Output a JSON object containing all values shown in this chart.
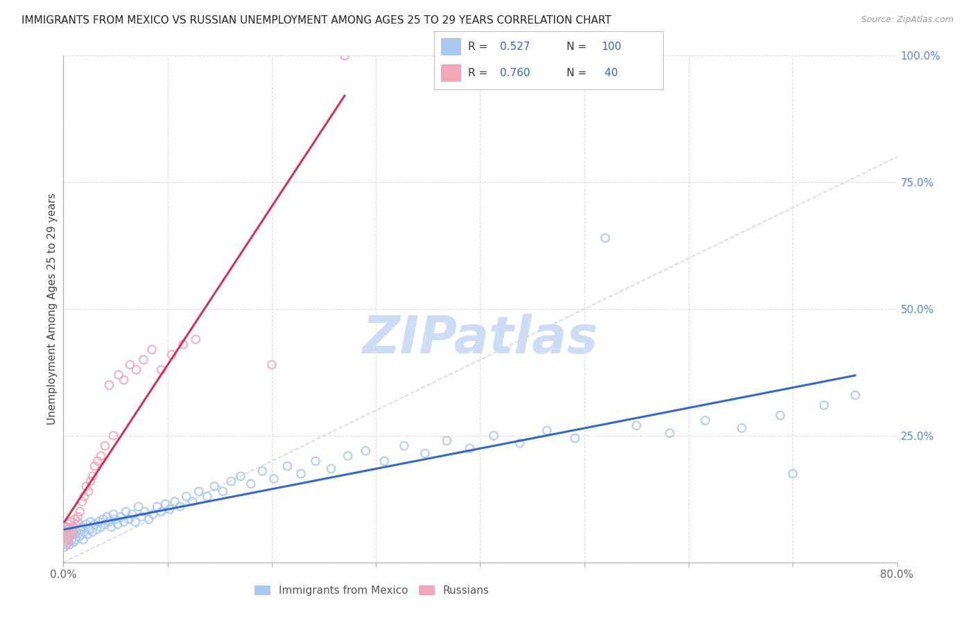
{
  "title": "IMMIGRANTS FROM MEXICO VS RUSSIAN UNEMPLOYMENT AMONG AGES 25 TO 29 YEARS CORRELATION CHART",
  "source": "Source: ZipAtlas.com",
  "ylabel": "Unemployment Among Ages 25 to 29 years",
  "xlim": [
    0.0,
    0.8
  ],
  "ylim": [
    0.0,
    1.0
  ],
  "blue_color": "#a8c8f0",
  "pink_color": "#f0a8b8",
  "blue_line_color": "#3366cc",
  "pink_line_color": "#cc3355",
  "diag_line_color": "#cccccc",
  "R_blue": 0.527,
  "N_blue": 100,
  "R_pink": 0.76,
  "N_pink": 40,
  "blue_x": [
    0.001,
    0.001,
    0.002,
    0.002,
    0.003,
    0.003,
    0.003,
    0.004,
    0.004,
    0.005,
    0.005,
    0.005,
    0.006,
    0.006,
    0.007,
    0.007,
    0.008,
    0.008,
    0.009,
    0.01,
    0.01,
    0.011,
    0.012,
    0.013,
    0.014,
    0.015,
    0.016,
    0.017,
    0.018,
    0.019,
    0.02,
    0.022,
    0.023,
    0.025,
    0.026,
    0.028,
    0.03,
    0.032,
    0.034,
    0.036,
    0.038,
    0.04,
    0.042,
    0.044,
    0.046,
    0.048,
    0.05,
    0.052,
    0.055,
    0.058,
    0.06,
    0.063,
    0.066,
    0.069,
    0.072,
    0.075,
    0.078,
    0.082,
    0.086,
    0.09,
    0.094,
    0.098,
    0.102,
    0.107,
    0.112,
    0.118,
    0.124,
    0.13,
    0.138,
    0.145,
    0.153,
    0.161,
    0.17,
    0.18,
    0.191,
    0.202,
    0.215,
    0.228,
    0.242,
    0.257,
    0.273,
    0.29,
    0.308,
    0.327,
    0.347,
    0.368,
    0.39,
    0.413,
    0.438,
    0.464,
    0.491,
    0.52,
    0.55,
    0.582,
    0.616,
    0.651,
    0.688,
    0.7,
    0.73,
    0.76
  ],
  "blue_y": [
    0.05,
    0.03,
    0.06,
    0.04,
    0.055,
    0.035,
    0.07,
    0.045,
    0.065,
    0.05,
    0.04,
    0.075,
    0.055,
    0.035,
    0.06,
    0.08,
    0.045,
    0.065,
    0.055,
    0.04,
    0.07,
    0.055,
    0.045,
    0.06,
    0.08,
    0.05,
    0.065,
    0.055,
    0.07,
    0.045,
    0.06,
    0.075,
    0.055,
    0.065,
    0.08,
    0.06,
    0.075,
    0.065,
    0.08,
    0.07,
    0.085,
    0.075,
    0.09,
    0.08,
    0.07,
    0.095,
    0.085,
    0.075,
    0.09,
    0.08,
    0.1,
    0.085,
    0.095,
    0.08,
    0.11,
    0.09,
    0.1,
    0.085,
    0.095,
    0.11,
    0.1,
    0.115,
    0.105,
    0.12,
    0.11,
    0.13,
    0.12,
    0.14,
    0.13,
    0.15,
    0.14,
    0.16,
    0.17,
    0.155,
    0.18,
    0.165,
    0.19,
    0.175,
    0.2,
    0.185,
    0.21,
    0.22,
    0.2,
    0.23,
    0.215,
    0.24,
    0.225,
    0.25,
    0.235,
    0.26,
    0.245,
    0.64,
    0.27,
    0.255,
    0.28,
    0.265,
    0.29,
    0.175,
    0.31,
    0.33
  ],
  "pink_x": [
    0.001,
    0.002,
    0.003,
    0.003,
    0.004,
    0.004,
    0.005,
    0.006,
    0.007,
    0.008,
    0.009,
    0.01,
    0.011,
    0.012,
    0.014,
    0.016,
    0.018,
    0.02,
    0.022,
    0.024,
    0.026,
    0.028,
    0.03,
    0.033,
    0.036,
    0.04,
    0.044,
    0.048,
    0.053,
    0.058,
    0.064,
    0.07,
    0.077,
    0.085,
    0.094,
    0.104,
    0.115,
    0.127,
    0.2,
    0.27
  ],
  "pink_y": [
    0.04,
    0.055,
    0.035,
    0.07,
    0.05,
    0.065,
    0.045,
    0.06,
    0.08,
    0.055,
    0.07,
    0.06,
    0.085,
    0.075,
    0.09,
    0.1,
    0.12,
    0.13,
    0.15,
    0.14,
    0.16,
    0.17,
    0.19,
    0.2,
    0.21,
    0.23,
    0.35,
    0.25,
    0.37,
    0.36,
    0.39,
    0.38,
    0.4,
    0.42,
    0.38,
    0.41,
    0.43,
    0.44,
    0.39,
    1.0
  ],
  "watermark_text": "ZIPatlas",
  "watermark_color": "#ccddf5",
  "background_color": "#ffffff",
  "grid_color": "#dddddd"
}
